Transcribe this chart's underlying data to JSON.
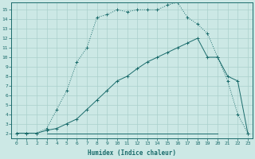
{
  "xlabel": "Humidex (Indice chaleur)",
  "bg_color": "#cce8e5",
  "line_color": "#1a6b6b",
  "grid_color": "#aad0cc",
  "xlim": [
    -0.5,
    23.5
  ],
  "ylim": [
    1.5,
    15.8
  ],
  "xticks": [
    0,
    1,
    2,
    3,
    4,
    5,
    6,
    7,
    8,
    9,
    10,
    11,
    12,
    13,
    14,
    15,
    16,
    17,
    18,
    19,
    20,
    21,
    22,
    23
  ],
  "yticks": [
    2,
    3,
    4,
    5,
    6,
    7,
    8,
    9,
    10,
    11,
    12,
    13,
    14,
    15
  ],
  "curve1_x": [
    0,
    1,
    2,
    3,
    4,
    5,
    6,
    7,
    8,
    9,
    10,
    11,
    12,
    13,
    14,
    15,
    16,
    17,
    18,
    19,
    20,
    21,
    22,
    23
  ],
  "curve1_y": [
    2,
    2,
    2,
    2.5,
    4.5,
    6.5,
    9.5,
    11,
    14.2,
    14.5,
    15,
    14.8,
    15,
    15,
    15,
    15.5,
    15.8,
    14.2,
    13.5,
    12.5,
    10,
    7.5,
    4,
    2
  ],
  "curve2_x": [
    0,
    1,
    2,
    3,
    4,
    5,
    6,
    7,
    8,
    9,
    10,
    11,
    12,
    13,
    14,
    15,
    16,
    17,
    18,
    19,
    20,
    21,
    22,
    23
  ],
  "curve2_y": [
    2,
    2,
    2,
    2.3,
    2.5,
    3.0,
    3.5,
    4.5,
    5.5,
    6.5,
    7.5,
    8.0,
    8.8,
    9.5,
    10.0,
    10.5,
    11.0,
    11.5,
    12.0,
    10,
    10,
    8.0,
    7.5,
    2
  ],
  "curve3_x": [
    3,
    20
  ],
  "curve3_y": [
    2,
    2
  ]
}
